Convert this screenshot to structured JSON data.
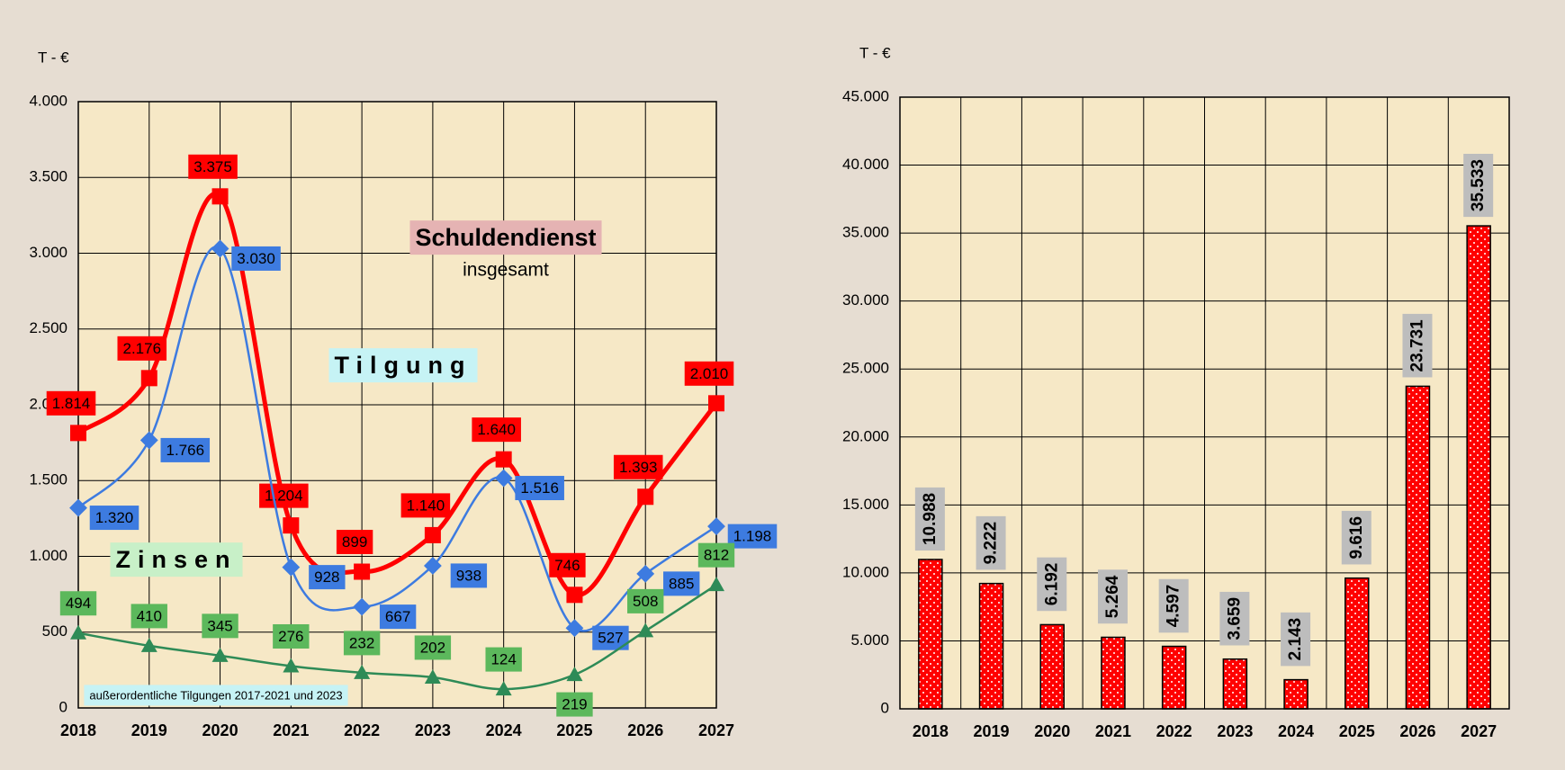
{
  "chart_data": [
    {
      "type": "line",
      "y_label": "T - €",
      "categories": [
        "2018",
        "2019",
        "2020",
        "2021",
        "2022",
        "2023",
        "2024",
        "2025",
        "2026",
        "2027"
      ],
      "ylim": [
        0,
        4000
      ],
      "yticks": [
        0,
        500,
        {
          "value": 1000,
          "label": "1.000"
        },
        {
          "value": 1500,
          "label": "1.500"
        },
        {
          "value": 2000,
          "label": "2.000"
        },
        {
          "value": 2500,
          "label": "2.500"
        },
        {
          "value": 3000,
          "label": "3.000"
        },
        {
          "value": 3500,
          "label": "3.500"
        },
        {
          "value": 4000,
          "label": "4.000"
        }
      ],
      "grid": true,
      "series": [
        {
          "name": "Schuldendienst",
          "color": "#ff0000",
          "values": [
            1814,
            2176,
            3375,
            1204,
            899,
            1140,
            1640,
            746,
            1393,
            2010
          ],
          "value_labels": [
            "1.814",
            "2.176",
            "3.375",
            "1.204",
            "899",
            "1.140",
            "1.640",
            "746",
            "1.393",
            "2.010"
          ]
        },
        {
          "name": "Tilgung",
          "color": "#3d7be0",
          "values": [
            1320,
            1766,
            3030,
            928,
            667,
            938,
            1516,
            527,
            885,
            1198
          ],
          "value_labels": [
            "1.320",
            "1.766",
            "3.030",
            "928",
            "667",
            "938",
            "1.516",
            "527",
            "885",
            "1.198"
          ]
        },
        {
          "name": "Zinsen",
          "color": "#2e8b57",
          "values": [
            494,
            410,
            345,
            276,
            232,
            202,
            124,
            219,
            508,
            812
          ],
          "value_labels": [
            "494",
            "410",
            "345",
            "276",
            "232",
            "202",
            "124",
            "219",
            "508",
            "812"
          ]
        }
      ],
      "legend_subtitle": "insgesamt",
      "note": "außerordentliche Tilgungen 2017-2021 und 2023"
    },
    {
      "type": "bar",
      "y_label": "T - €",
      "color": "#ff0000",
      "categories": [
        "2018",
        "2019",
        "2020",
        "2021",
        "2022",
        "2023",
        "2024",
        "2025",
        "2026",
        "2027"
      ],
      "values": [
        10988,
        9222,
        6192,
        5264,
        4597,
        3659,
        2143,
        9616,
        23731,
        35533
      ],
      "value_labels": [
        "10.988",
        "9.222",
        "6.192",
        "5.264",
        "4.597",
        "3.659",
        "2.143",
        "9.616",
        "23.731",
        "35.533"
      ],
      "ylim": [
        0,
        45000
      ],
      "yticks": [
        0,
        {
          "value": 5000,
          "label": "5.000"
        },
        {
          "value": 10000,
          "label": "10.000"
        },
        {
          "value": 15000,
          "label": "15.000"
        },
        {
          "value": 20000,
          "label": "20.000"
        },
        {
          "value": 25000,
          "label": "25.000"
        },
        {
          "value": 30000,
          "label": "30.000"
        },
        {
          "value": 35000,
          "label": "35.000"
        },
        {
          "value": 40000,
          "label": "40.000"
        },
        {
          "value": 45000,
          "label": "45.000"
        }
      ],
      "grid": true
    }
  ]
}
